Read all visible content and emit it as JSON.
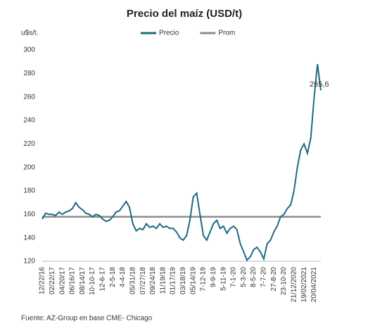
{
  "chart_data": {
    "type": "line",
    "title": "Precio del maíz (USD/t)",
    "y_label": "u$s/t.",
    "source": "Fuente: AZ-Group en base CME- Chicago",
    "annotation": "265,6",
    "categories": [
      "12/22/16",
      null,
      null,
      "02/22/17",
      null,
      null,
      "04/20/17",
      null,
      null,
      "06/16/17",
      null,
      null,
      "08/14/17",
      null,
      null,
      "10-10-17",
      null,
      null,
      "12-6-17",
      null,
      null,
      "2-5-18",
      null,
      null,
      "4-4-18",
      null,
      null,
      "05/31/18",
      null,
      null,
      "07/27/18",
      null,
      null,
      "09/24/18",
      null,
      null,
      "11/19/18",
      null,
      null,
      "01/17/19",
      null,
      null,
      "03/18/19",
      null,
      null,
      "05/14/19",
      null,
      null,
      "7-12-19",
      null,
      null,
      "9-9-19",
      null,
      null,
      "5-11-19",
      null,
      null,
      "7-1-20",
      null,
      null,
      "5-3-20",
      null,
      null,
      "8-5-20",
      null,
      null,
      "7-7-20",
      null,
      null,
      "27-8-20",
      null,
      null,
      "23-10-20",
      null,
      null,
      "21/12/2020",
      null,
      null,
      "19/02/2021",
      null,
      null,
      "20/04/2021",
      null,
      null
    ],
    "series": [
      {
        "name": "Precio",
        "color": "#1d6a82",
        "values": [
          156,
          161,
          160,
          160,
          159,
          162,
          160,
          162,
          163,
          165,
          170,
          166,
          164,
          161,
          160,
          158,
          160,
          159,
          156,
          154,
          155,
          158,
          162,
          163,
          167,
          171,
          166,
          152,
          146,
          148,
          147,
          152,
          149,
          150,
          148,
          152,
          149,
          150,
          148,
          148,
          145,
          140,
          138,
          142,
          155,
          175,
          178,
          160,
          142,
          138,
          145,
          152,
          155,
          148,
          150,
          144,
          148,
          150,
          147,
          135,
          128,
          121,
          124,
          130,
          132,
          128,
          122,
          135,
          138,
          145,
          150,
          158,
          160,
          165,
          168,
          180,
          200,
          215,
          220,
          212,
          225,
          260,
          288,
          265.6
        ]
      },
      {
        "name": "Prom",
        "color": "#8c8c8c",
        "values": [
          158,
          158,
          158,
          158,
          158,
          158,
          158,
          158,
          158,
          158,
          158,
          158,
          158,
          158,
          158,
          158,
          158,
          158,
          158,
          158,
          158,
          158,
          158,
          158,
          158,
          158,
          158,
          158,
          158,
          158,
          158,
          158,
          158,
          158,
          158,
          158,
          158,
          158,
          158,
          158,
          158,
          158,
          158,
          158,
          158,
          158,
          158,
          158,
          158,
          158,
          158,
          158,
          158,
          158,
          158,
          158,
          158,
          158,
          158,
          158,
          158,
          158,
          158,
          158,
          158,
          158,
          158,
          158,
          158,
          158,
          158,
          158,
          158,
          158,
          158,
          158,
          158,
          158,
          158,
          158,
          158,
          158,
          158,
          158
        ]
      }
    ],
    "ylim": [
      120,
      300
    ],
    "yticks": [
      120,
      140,
      160,
      180,
      200,
      220,
      240,
      260,
      280,
      300
    ],
    "grid": false
  }
}
